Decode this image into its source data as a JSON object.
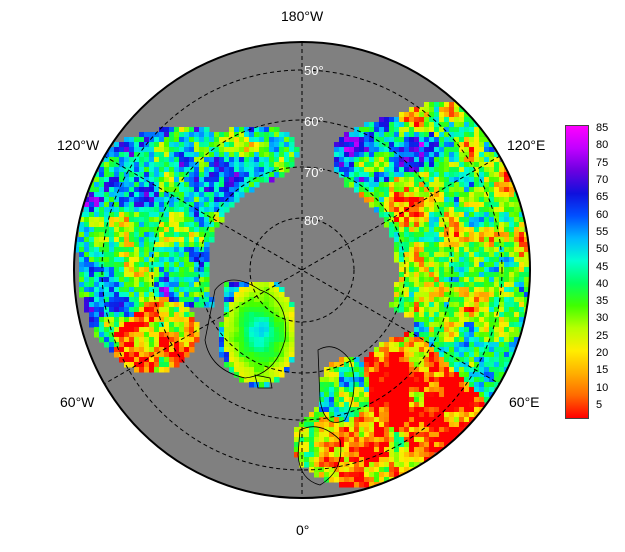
{
  "map": {
    "projection": "north polar stereographic",
    "background_color": "#808080",
    "longitude_labels": {
      "top": "180°W",
      "bottom": "0°",
      "upper_left": "120°W",
      "lower_left": "60°W",
      "upper_right": "120°E",
      "lower_right": "60°E"
    },
    "latitude_labels": [
      "50°",
      "60°",
      "70°",
      "80°"
    ]
  },
  "colorbar": {
    "ticks": [
      "85",
      "80",
      "75",
      "70",
      "65",
      "60",
      "55",
      "50",
      "45",
      "40",
      "35",
      "30",
      "25",
      "20",
      "15",
      "10",
      "5"
    ],
    "colors": [
      "#ff0000",
      "#ff6a00",
      "#ffb000",
      "#ffee00",
      "#b8ff00",
      "#40ff00",
      "#00ff60",
      "#00ffd0",
      "#00b8ff",
      "#0050ff",
      "#1010dd",
      "#6a00e0",
      "#c000ff",
      "#ff00ff"
    ]
  }
}
